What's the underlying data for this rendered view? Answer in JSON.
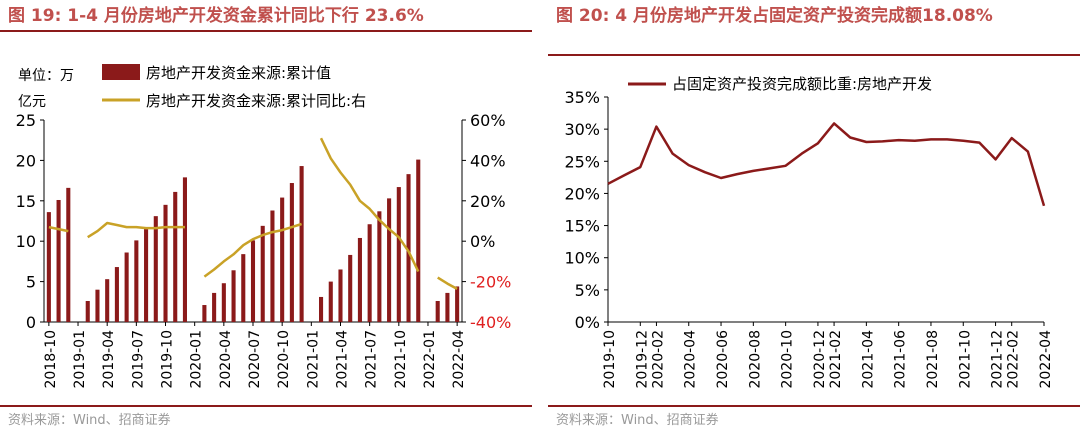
{
  "left": {
    "title": "图 19:  1-4 月份房地产开发资金累计同比下行 23.6%",
    "source": "资料来源：Wind、招商证券",
    "chart_data": {
      "type": "bar",
      "unit_label": [
        "单位：万",
        "亿元"
      ],
      "legend_position": "top",
      "categories": [
        "2018-10",
        "2018-11",
        "2018-12",
        "2019-01",
        "2019-02",
        "2019-03",
        "2019-04",
        "2019-05",
        "2019-06",
        "2019-07",
        "2019-08",
        "2019-09",
        "2019-10",
        "2019-11",
        "2019-12",
        "2020-01",
        "2020-02",
        "2020-03",
        "2020-04",
        "2020-05",
        "2020-06",
        "2020-07",
        "2020-08",
        "2020-09",
        "2020-10",
        "2020-11",
        "2020-12",
        "2021-01",
        "2021-02",
        "2021-03",
        "2021-04",
        "2021-05",
        "2021-06",
        "2021-07",
        "2021-08",
        "2021-09",
        "2021-10",
        "2021-11",
        "2021-12",
        "2022-01",
        "2022-02",
        "2022-03",
        "2022-04"
      ],
      "tick_labels": [
        "2018-10",
        "2019-01",
        "2019-04",
        "2019-07",
        "2019-10",
        "2020-01",
        "2020-04",
        "2020-07",
        "2020-10",
        "2021-01",
        "2021-04",
        "2021-07",
        "2021-10",
        "2022-01",
        "2022-04"
      ],
      "ylim_left": [
        0,
        25
      ],
      "yticks_left": [
        "0",
        "5",
        "10",
        "15",
        "20",
        "25"
      ],
      "ylim_right": [
        -40,
        60
      ],
      "yticks_right": [
        "-40%",
        "-20%",
        "0%",
        "20%",
        "40%",
        "60%"
      ],
      "series": [
        {
          "name": "房地产开发资金来源:累计值",
          "type": "bar",
          "axis": "left",
          "color": "#8b1a1a",
          "values": [
            13.6,
            15.1,
            16.6,
            null,
            2.6,
            4.0,
            5.3,
            6.8,
            8.6,
            10.1,
            11.5,
            13.1,
            14.5,
            16.1,
            17.9,
            null,
            2.1,
            3.6,
            4.8,
            6.4,
            8.4,
            10.1,
            11.9,
            13.8,
            15.4,
            17.2,
            19.3,
            null,
            3.1,
            5.0,
            6.5,
            8.3,
            10.4,
            12.1,
            13.7,
            15.3,
            16.7,
            18.3,
            20.1,
            null,
            2.6,
            3.6,
            4.4
          ]
        },
        {
          "name": "房地产开发资金来源:累计同比:右",
          "type": "line",
          "axis": "right",
          "color": "#c9a227",
          "values": [
            7,
            6,
            5,
            null,
            2,
            5,
            9,
            8,
            7,
            7,
            6.5,
            6.5,
            7,
            7,
            7,
            null,
            -17.5,
            -14,
            -10,
            -6.5,
            -2,
            1,
            3,
            4.5,
            5.5,
            7,
            8.5,
            null,
            51,
            41,
            34,
            28,
            20,
            16,
            10.5,
            6,
            2,
            -5,
            -15,
            null,
            -18,
            -21,
            -23.6
          ]
        }
      ]
    }
  },
  "right": {
    "title": "图 20:  4 月份房地产开发占固定资产投资完成额18.08%",
    "source": "资料来源：Wind、招商证券",
    "chart_data": {
      "type": "line",
      "legend_position": "top",
      "x": [
        "2019-10",
        "2019-12",
        "2020-02",
        "2020-04",
        "2020-06",
        "2020-08",
        "2020-10",
        "2020-12",
        "2021-02",
        "2021-04",
        "2021-06",
        "2021-08",
        "2021-10",
        "2021-12",
        "2022-02",
        "2022-04"
      ],
      "categories": [
        "2019-10",
        "2019-11",
        "2019-12",
        "2020-02",
        "2020-03",
        "2020-04",
        "2020-05",
        "2020-06",
        "2020-07",
        "2020-08",
        "2020-09",
        "2020-10",
        "2020-11",
        "2020-12",
        "2021-02",
        "2021-03",
        "2021-04",
        "2021-05",
        "2021-06",
        "2021-07",
        "2021-08",
        "2021-09",
        "2021-10",
        "2021-11",
        "2021-12",
        "2022-02",
        "2022-03",
        "2022-04"
      ],
      "ylim": [
        0,
        35
      ],
      "yticks": [
        "0%",
        "5%",
        "10%",
        "15%",
        "20%",
        "25%",
        "30%",
        "35%"
      ],
      "series": [
        {
          "name": "占固定资产投资完成额比重:房地产开发",
          "color": "#8b1a1a",
          "values": [
            21.5,
            22.8,
            24.1,
            30.4,
            26.2,
            24.4,
            23.3,
            22.4,
            23.0,
            23.5,
            23.9,
            24.3,
            26.2,
            27.8,
            30.9,
            28.7,
            28.0,
            28.1,
            28.3,
            28.2,
            28.4,
            28.4,
            28.2,
            27.9,
            25.3,
            28.6,
            26.5,
            18.08
          ]
        }
      ]
    }
  }
}
